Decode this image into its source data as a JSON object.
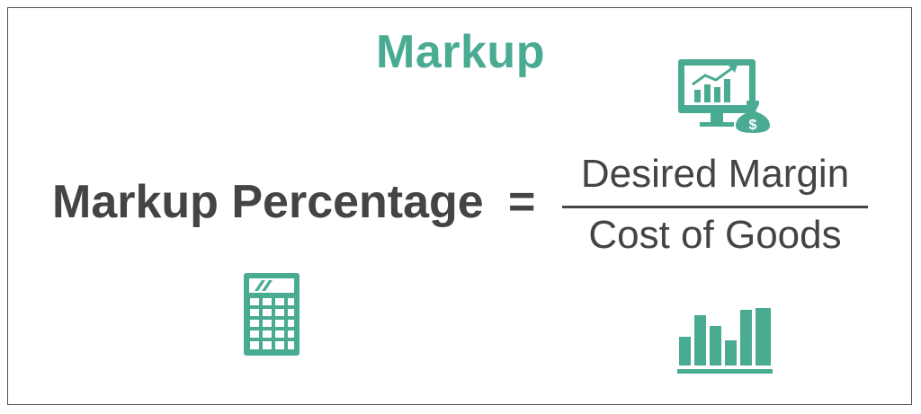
{
  "title": "Markup",
  "formula": {
    "lhs": "Markup Percentage",
    "operator": "=",
    "numerator": "Desired Margin",
    "denominator": "Cost of Goods"
  },
  "icons": {
    "monitor": "monitor-chart-money-icon",
    "calculator": "calculator-icon",
    "bars": "bar-chart-icon",
    "money_symbol": "$"
  },
  "colors": {
    "accent": "#4aab93",
    "text": "#444444",
    "border": "#555555"
  }
}
